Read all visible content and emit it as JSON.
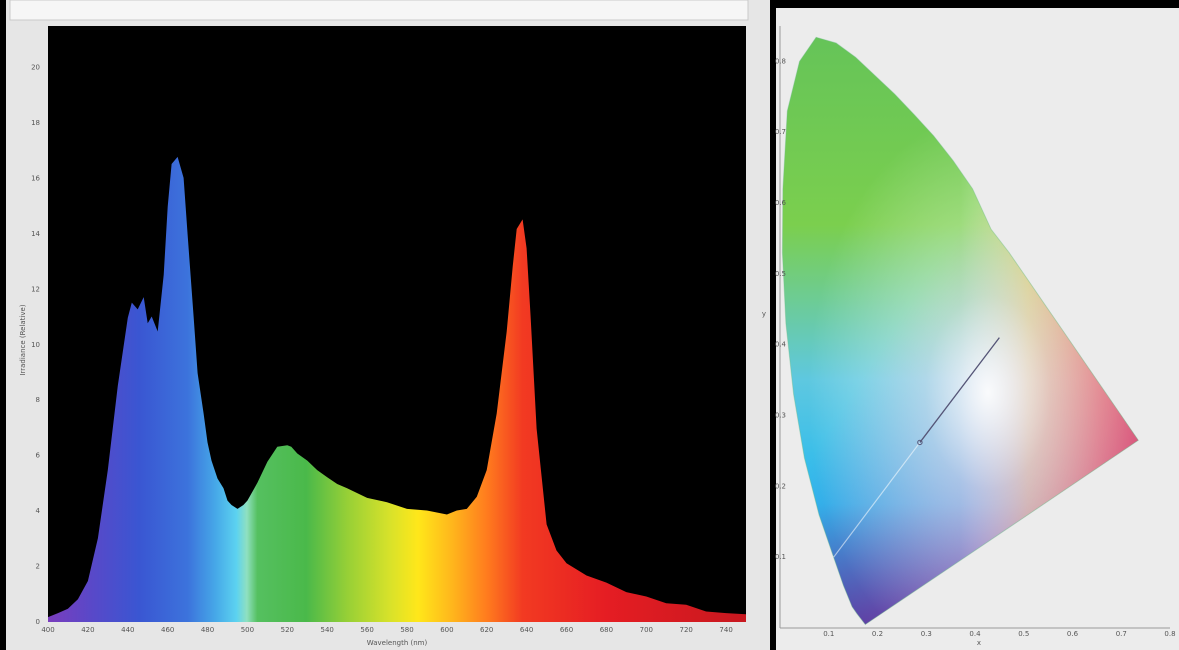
{
  "chart_data": [
    {
      "type": "area",
      "title": "",
      "xlabel": "Wavelength (nm)",
      "ylabel": "Irradiance (Relative)",
      "xlim": [
        400,
        750
      ],
      "ylim": [
        0,
        21.5
      ],
      "x_ticks": [
        "400",
        "420",
        "440",
        "460",
        "480",
        "500",
        "520",
        "540",
        "560",
        "580",
        "600",
        "620",
        "640",
        "660",
        "680",
        "700",
        "720",
        "740"
      ],
      "y_ticks": [
        "0",
        "2",
        "4",
        "6",
        "8",
        "10",
        "12",
        "14",
        "16",
        "18",
        "20"
      ],
      "grid": false,
      "background": "#000000",
      "series": [
        {
          "x": [
            400,
            405,
            410,
            415,
            420,
            425,
            430,
            435,
            440,
            442,
            445,
            448,
            450,
            452,
            455,
            458,
            460,
            462,
            465,
            468,
            470,
            473,
            475,
            478,
            480,
            482,
            485,
            488,
            490,
            492,
            495,
            498,
            500,
            505,
            510,
            515,
            520,
            522,
            525,
            530,
            535,
            540,
            545,
            550,
            560,
            570,
            580,
            590,
            600,
            605,
            610,
            615,
            620,
            625,
            630,
            633,
            635,
            638,
            640,
            642,
            645,
            650,
            655,
            660,
            670,
            680,
            690,
            700,
            710,
            720,
            730,
            740,
            750
          ],
          "values": [
            0.2,
            0.3,
            0.5,
            0.8,
            1.5,
            3.0,
            5.5,
            8.5,
            11.0,
            11.5,
            11.3,
            11.7,
            10.8,
            11.0,
            10.5,
            12.5,
            15.0,
            16.5,
            16.8,
            16.0,
            14.0,
            11.0,
            9.0,
            7.5,
            6.5,
            5.8,
            5.2,
            4.8,
            4.4,
            4.2,
            4.1,
            4.2,
            4.4,
            5.0,
            5.8,
            6.3,
            6.4,
            6.3,
            6.1,
            5.8,
            5.5,
            5.2,
            5.0,
            4.8,
            4.5,
            4.3,
            4.1,
            4.0,
            3.9,
            4.0,
            4.1,
            4.5,
            5.5,
            7.5,
            10.5,
            12.8,
            14.2,
            14.5,
            13.5,
            11.0,
            7.0,
            3.5,
            2.6,
            2.1,
            1.7,
            1.4,
            1.1,
            0.9,
            0.7,
            0.6,
            0.4,
            0.3,
            0.3
          ]
        }
      ]
    },
    {
      "type": "scatter",
      "title": "",
      "xlabel": "x",
      "ylabel": "y",
      "xlim": [
        0,
        0.8
      ],
      "ylim": [
        0,
        0.85
      ],
      "x_ticks": [
        "0.1",
        "0.2",
        "0.3",
        "0.4",
        "0.5",
        "0.6",
        "0.7",
        "0.8"
      ],
      "y_ticks": [
        "0.1",
        "0.2",
        "0.3",
        "0.4",
        "0.5",
        "0.6",
        "0.7",
        "0.8"
      ],
      "grid": false,
      "background": "#ececec",
      "spectral_locus": {
        "x": [
          0.175,
          0.158,
          0.148,
          0.13,
          0.11,
          0.08,
          0.05,
          0.028,
          0.012,
          0.005,
          0.006,
          0.015,
          0.04,
          0.074,
          0.115,
          0.155,
          0.195,
          0.235,
          0.275,
          0.315,
          0.355,
          0.395,
          0.433,
          0.47,
          0.505,
          0.545,
          0.58,
          0.62,
          0.66,
          0.7,
          0.735
        ],
        "y": [
          0.005,
          0.02,
          0.03,
          0.06,
          0.1,
          0.16,
          0.24,
          0.33,
          0.43,
          0.53,
          0.62,
          0.73,
          0.8,
          0.834,
          0.826,
          0.806,
          0.78,
          0.754,
          0.725,
          0.695,
          0.66,
          0.62,
          0.563,
          0.53,
          0.495,
          0.455,
          0.42,
          0.38,
          0.34,
          0.3,
          0.265
        ]
      },
      "white_line": {
        "x": [
          0.11,
          0.287
        ],
        "y": [
          0.1,
          0.262
        ]
      },
      "isotemp_line": {
        "x": [
          0.287,
          0.45
        ],
        "y": [
          0.262,
          0.41
        ]
      },
      "points": [
        {
          "x": 0.287,
          "y": 0.262
        }
      ]
    }
  ]
}
